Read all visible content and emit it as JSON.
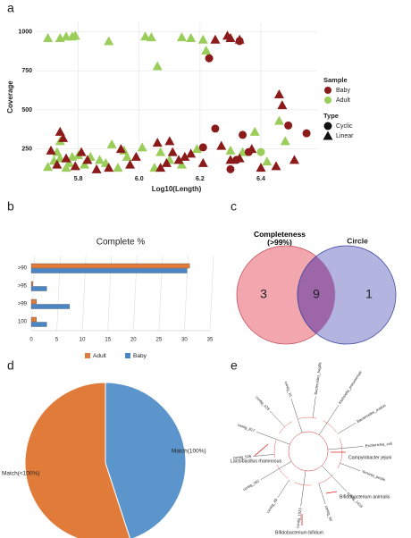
{
  "panel_labels": [
    "a",
    "b",
    "c",
    "d",
    "e"
  ],
  "chart_data": [
    {
      "type": "scatter",
      "xlabel": "Log10(Length)",
      "ylabel": "Coverage",
      "xlim": [
        5.66,
        6.585
      ],
      "ylim": [
        105,
        1060
      ],
      "xticks": [
        5.8,
        {
          "value": 6,
          "label": "6.0"
        },
        6.2,
        6.4
      ],
      "yticks": [
        250,
        500,
        750,
        1000
      ],
      "grid": true,
      "legend": {
        "color_title": "Sample",
        "colors": [
          {
            "name": "Baby",
            "color": "#8b1a1a"
          },
          {
            "name": "Adult",
            "color": "#9acd5a"
          }
        ],
        "shape_title": "Type",
        "shapes": [
          {
            "name": "Cyclic",
            "marker": "circle"
          },
          {
            "name": "Linear",
            "marker": "triangle"
          }
        ]
      },
      "series": [
        {
          "color": "#9acd5a",
          "marker": "triangle",
          "x": [
            5.7,
            5.74,
            5.76,
            5.78,
            5.79,
            5.9,
            6.02,
            6.04,
            6.06,
            6.14,
            6.17,
            6.22,
            6.21,
            5.7,
            5.72,
            5.74,
            5.74,
            5.76,
            5.77,
            5.78,
            5.8,
            5.82,
            5.84,
            5.87,
            5.89,
            5.91,
            5.93,
            5.96,
            6.01,
            6.05,
            6.07,
            6.1,
            6.14,
            6.19,
            6.3,
            6.34,
            6.38,
            6.42,
            6.46,
            6.48,
            5.95,
            5.73
          ],
          "y": [
            960,
            960,
            970,
            970,
            975,
            940,
            970,
            965,
            780,
            965,
            960,
            880,
            950,
            135,
            175,
            300,
            190,
            130,
            160,
            200,
            210,
            150,
            200,
            180,
            160,
            280,
            130,
            200,
            260,
            130,
            230,
            180,
            150,
            250,
            240,
            230,
            360,
            170,
            430,
            300,
            240,
            230
          ]
        },
        {
          "color": "#9acd5a",
          "marker": "circle",
          "x": [
            6.4
          ],
          "y": [
            230
          ]
        },
        {
          "color": "#8b1a1a",
          "marker": "triangle",
          "x": [
            6.25,
            6.29,
            6.3,
            6.33,
            5.71,
            5.74,
            5.75,
            5.73,
            5.76,
            5.79,
            5.81,
            5.83,
            5.86,
            5.9,
            5.94,
            5.97,
            5.99,
            6.06,
            6.07,
            6.09,
            6.1,
            6.11,
            6.13,
            6.15,
            6.17,
            6.21,
            6.27,
            6.3,
            6.33,
            6.37,
            6.4,
            6.46,
            6.47,
            6.51,
            6.45
          ],
          "y": [
            950,
            975,
            960,
            950,
            240,
            360,
            320,
            150,
            190,
            140,
            230,
            180,
            120,
            130,
            250,
            150,
            200,
            290,
            130,
            160,
            300,
            230,
            180,
            200,
            220,
            160,
            270,
            180,
            190,
            250,
            130,
            600,
            530,
            180,
            140
          ]
        },
        {
          "color": "#8b1a1a",
          "marker": "circle",
          "x": [
            6.23,
            6.33,
            6.25,
            6.21,
            6.3,
            6.32,
            6.34,
            6.49,
            6.55,
            6.36
          ],
          "y": [
            830,
            940,
            380,
            260,
            120,
            180,
            340,
            400,
            350,
            230
          ]
        }
      ]
    },
    {
      "type": "hbar",
      "title": "Complete %",
      "categories": [
        ">90",
        ">95",
        ">99",
        "100"
      ],
      "xlim": [
        0,
        35
      ],
      "xticks": [
        0,
        5,
        10,
        15,
        20,
        25,
        30,
        35
      ],
      "grid": true,
      "legend": "bottom",
      "series": [
        {
          "name": "Adult",
          "color": "#e07b39",
          "values": [
            31,
            0.3,
            1,
            1
          ]
        },
        {
          "name": "Baby",
          "color": "#4a86c5",
          "values": [
            30.5,
            3,
            7.5,
            3
          ]
        }
      ]
    },
    {
      "type": "venn",
      "sets": [
        "Completeness (>99%)",
        "Circle"
      ],
      "colors": [
        "#f2a7ae",
        "#a6a8da"
      ],
      "overlap_color": "#9c66a8",
      "values": [
        3,
        9,
        1
      ]
    },
    {
      "type": "pie",
      "categories": [
        "Match(100%)",
        "Match(<100%)"
      ],
      "values": [
        45,
        55
      ],
      "colors": [
        "#5b95cc",
        "#e07b39"
      ]
    },
    {
      "type": "tree",
      "leaves": [
        "Bacteroides_fragilis",
        "Klebsiella_pneumoniae",
        "Bacteroides_ovatus",
        "Escherichia_coli",
        "Yersinia_pestis",
        "contig_1423",
        "contig_92",
        "contig_1023",
        "contig_49",
        "contig_262",
        "contig_526",
        "contig_817",
        "contig_478",
        "contig_31"
      ],
      "annotations": [
        "Lactobacillus rhamnosus",
        "Campylobacter jejuni",
        "Bifidobacterium animalis",
        "Bifidobacterium bifidum"
      ]
    }
  ]
}
